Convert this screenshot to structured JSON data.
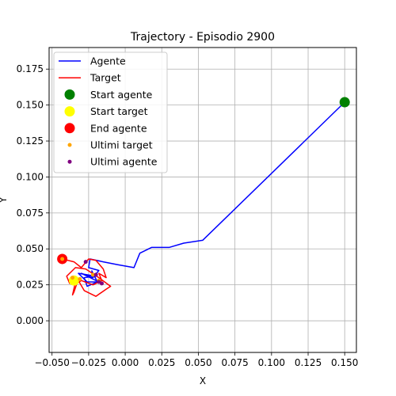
{
  "chart_data": {
    "type": "line",
    "title": "Trajectory - Episodio 2900",
    "xlabel": "X",
    "ylabel": "Y",
    "xlim": [
      -0.052,
      0.158
    ],
    "ylim": [
      -0.022,
      0.19
    ],
    "xticks": [
      -0.05,
      -0.025,
      0.0,
      0.025,
      0.05,
      0.075,
      0.1,
      0.125,
      0.15
    ],
    "xtick_labels": [
      "−0.050",
      "−0.025",
      "0.000",
      "0.025",
      "0.050",
      "0.075",
      "0.100",
      "0.125",
      "0.150"
    ],
    "yticks": [
      0.0,
      0.025,
      0.05,
      0.075,
      0.1,
      0.125,
      0.15,
      0.175
    ],
    "ytick_labels": [
      "0.000",
      "0.025",
      "0.050",
      "0.075",
      "0.100",
      "0.125",
      "0.150",
      "0.175"
    ],
    "grid": true,
    "legend_position": "top-left",
    "series": [
      {
        "name": "Agente",
        "kind": "line",
        "color": "#0000ff",
        "x": [
          0.15,
          0.053,
          0.04,
          0.03,
          0.018,
          0.01,
          0.006,
          -0.005,
          -0.015,
          -0.024,
          -0.025,
          -0.018,
          -0.022,
          -0.03,
          -0.018,
          -0.026,
          -0.032,
          -0.02,
          -0.028,
          -0.026,
          -0.019,
          -0.023
        ],
        "y": [
          0.152,
          0.056,
          0.054,
          0.051,
          0.051,
          0.047,
          0.037,
          0.039,
          0.041,
          0.043,
          0.037,
          0.035,
          0.03,
          0.033,
          0.027,
          0.027,
          0.033,
          0.031,
          0.03,
          0.024,
          0.027,
          0.035
        ]
      },
      {
        "name": "Target",
        "kind": "line",
        "color": "#ff0000",
        "x": [
          -0.043,
          -0.035,
          -0.03,
          -0.025,
          -0.02,
          -0.015,
          -0.013,
          -0.018,
          -0.016,
          -0.022,
          -0.03,
          -0.033,
          -0.035,
          -0.036,
          -0.034,
          -0.038,
          -0.04,
          -0.034,
          -0.027,
          -0.021,
          -0.018,
          -0.01,
          -0.013,
          -0.02,
          -0.028,
          -0.032
        ],
        "y": [
          0.043,
          0.041,
          0.037,
          0.043,
          0.042,
          0.036,
          0.03,
          0.033,
          0.028,
          0.025,
          0.028,
          0.026,
          0.02,
          0.018,
          0.027,
          0.026,
          0.031,
          0.037,
          0.036,
          0.032,
          0.03,
          0.024,
          0.022,
          0.017,
          0.021,
          0.028
        ]
      },
      {
        "name": "Start agente",
        "kind": "point",
        "color": "#008000",
        "x": [
          0.15
        ],
        "y": [
          0.152
        ]
      },
      {
        "name": "Start target",
        "kind": "point",
        "color": "#ffff00",
        "x": [
          -0.035
        ],
        "y": [
          0.028
        ]
      },
      {
        "name": "End agente",
        "kind": "point",
        "color": "#ff0000",
        "x": [
          -0.043
        ],
        "y": [
          0.043
        ]
      },
      {
        "name": "Ultimi target",
        "kind": "scatter",
        "color": "#ffa500",
        "x": [
          -0.043,
          -0.036,
          -0.031,
          -0.022,
          -0.018
        ],
        "y": [
          0.043,
          0.03,
          0.029,
          0.032,
          0.028
        ]
      },
      {
        "name": "Ultimi agente",
        "kind": "scatter",
        "color": "#800080",
        "x": [
          -0.027,
          -0.02,
          -0.018,
          -0.016
        ],
        "y": [
          0.041,
          0.032,
          0.027,
          0.026
        ]
      }
    ]
  }
}
